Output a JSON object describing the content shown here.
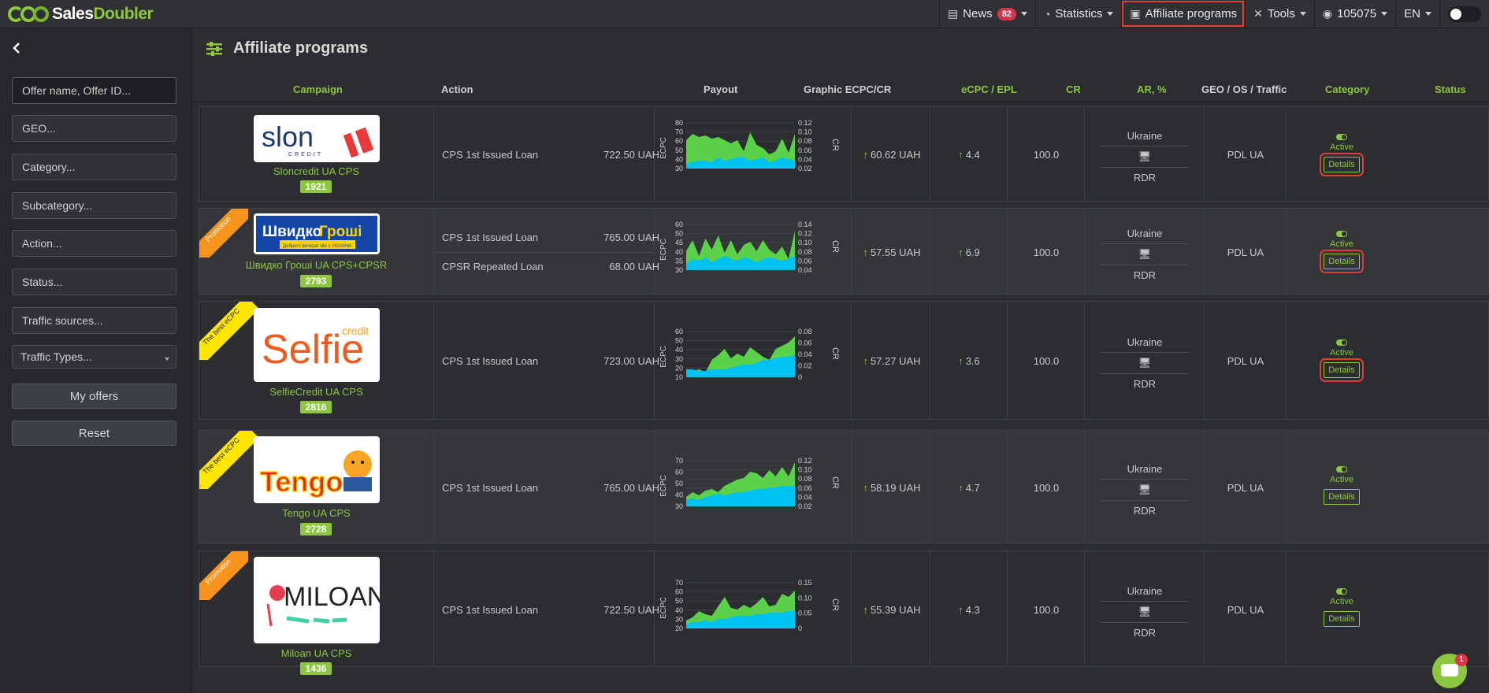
{
  "brand": {
    "name_part1": "Sales",
    "name_part2": "Doubler"
  },
  "topnav": {
    "news_label": "News",
    "news_count": "82",
    "statistics_label": "Statistics",
    "affiliate_label": "Affiliate programs",
    "tools_label": "Tools",
    "account_label": "105075",
    "lang_label": "EN"
  },
  "sidebar": {
    "search_placeholder": "Offer name, Offer ID...",
    "geo": "GEO...",
    "category": "Category...",
    "subcategory": "Subcategory...",
    "action": "Action...",
    "status": "Status...",
    "traffic_sources": "Traffic sources...",
    "traffic_types": "Traffic Types...",
    "my_offers": "My offers",
    "reset": "Reset"
  },
  "page": {
    "title": "Affiliate programs"
  },
  "table": {
    "headers": {
      "campaign": "Campaign",
      "action": "Action",
      "payout": "Payout",
      "graphic": "Graphic ECPC/CR",
      "ecpc": "eCPC / EPL",
      "cr": "CR",
      "ar": "AR, %",
      "geo": "GEO / OS / Traffic",
      "category": "Category",
      "status": "Status"
    },
    "rows": [
      {
        "name": "Sloncredit UA CPS",
        "id": "1921",
        "ribbon": "",
        "actions": [
          {
            "action": "CPS 1st Issued Loan",
            "payout": "722.50 UAH"
          }
        ],
        "ecpc": "60.62 UAH",
        "cr": "4.4",
        "ar": "100.0",
        "geo": "Ukraine",
        "traffic": "RDR",
        "category": "PDL UA",
        "status": "Active",
        "details": "Details",
        "chart": {
          "ylabel": "ECPC",
          "y2label": "CR",
          "left_ticks": [
            "80",
            "70",
            "60",
            "50",
            "40",
            "30"
          ],
          "right_ticks": [
            "0.12",
            "0.10",
            "0.08",
            "0.06",
            "0.04",
            "0.02"
          ]
        }
      },
      {
        "name": "Швидко Гроші UA CPS+CPSR",
        "id": "2793",
        "ribbon": "Promotion",
        "actions": [
          {
            "action": "CPS 1st Issued Loan",
            "payout": "765.00 UAH"
          },
          {
            "action": "CPSR Repeated Loan",
            "payout": "68.00 UAH"
          }
        ],
        "ecpc": "57.55 UAH",
        "cr": "6.9",
        "ar": "100.0",
        "geo": "Ukraine",
        "traffic": "RDR",
        "category": "PDL UA",
        "status": "Active",
        "details": "Details",
        "chart": {
          "ylabel": "ECPC",
          "y2label": "CR",
          "left_ticks": [
            "60",
            "50",
            "45",
            "40",
            "35",
            "30"
          ],
          "right_ticks": [
            "0.14",
            "0.12",
            "0.10",
            "0.08",
            "0.06",
            "0.04"
          ]
        }
      },
      {
        "name": "SelfieCredit UA CPS",
        "id": "2816",
        "ribbon": "The best eCPC",
        "actions": [
          {
            "action": "CPS 1st Issued Loan",
            "payout": "723.00 UAH"
          }
        ],
        "ecpc": "57.27 UAH",
        "cr": "3.6",
        "ar": "100.0",
        "geo": "Ukraine",
        "traffic": "RDR",
        "category": "PDL UA",
        "status": "Active",
        "details": "Details",
        "chart": {
          "ylabel": "ECPC",
          "y2label": "CR",
          "left_ticks": [
            "60",
            "50",
            "40",
            "30",
            "20",
            "10"
          ],
          "right_ticks": [
            "0.08",
            "0.06",
            "0.04",
            "0.02",
            "0"
          ]
        }
      },
      {
        "name": "Tengo UA CPS",
        "id": "2728",
        "ribbon": "The best eCPC",
        "actions": [
          {
            "action": "CPS 1st Issued Loan",
            "payout": "765.00 UAH"
          }
        ],
        "ecpc": "58.19 UAH",
        "cr": "4.7",
        "ar": "100.0",
        "geo": "Ukraine",
        "traffic": "RDR",
        "category": "PDL UA",
        "status": "Active",
        "details": "Details",
        "chart": {
          "ylabel": "ECPC",
          "y2label": "CR",
          "left_ticks": [
            "70",
            "60",
            "50",
            "40",
            "30"
          ],
          "right_ticks": [
            "0.12",
            "0.10",
            "0.08",
            "0.06",
            "0.04",
            "0.02"
          ]
        }
      },
      {
        "name": "Miloan UA CPS",
        "id": "1436",
        "ribbon": "Promotion",
        "actions": [
          {
            "action": "CPS 1st Issued Loan",
            "payout": "722.50 UAH"
          }
        ],
        "ecpc": "55.39 UAH",
        "cr": "4.3",
        "ar": "100.0",
        "geo": "Ukraine",
        "traffic": "RDR",
        "category": "PDL UA",
        "status": "Active",
        "details": "Details",
        "chart": {
          "ylabel": "ECPC",
          "y2label": "CR",
          "left_ticks": [
            "70",
            "60",
            "50",
            "40",
            "30",
            "20"
          ],
          "right_ticks": [
            "0.15",
            "0.10",
            "0.05",
            "0"
          ]
        }
      }
    ]
  },
  "logos": {
    "slon": "slon",
    "slon_sub": "CREDIT",
    "shvydko_1": "Швидко",
    "shvydko_2": "Гроші",
    "shvydko_sub": "Доброго вечора! Ми з УКРАЇНИ",
    "selfie": "Selfie",
    "selfie_sub": "credit",
    "tengo": "Tengo",
    "miloan": "MILOAN"
  },
  "chat": {
    "count": "1"
  },
  "colors": {
    "accent": "#8dc63f",
    "highlight": "#e23b3b",
    "area_green": "#5bd14a",
    "area_blue": "#00c2f0"
  }
}
